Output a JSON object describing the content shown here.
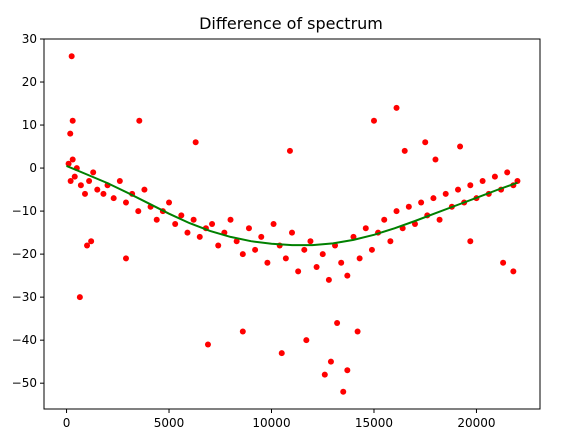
{
  "chart_data": {
    "type": "scatter",
    "title": "Difference of spectrum",
    "xlabel": "",
    "ylabel": "",
    "xlim": [
      -1100,
      23100
    ],
    "ylim": [
      -56,
      30
    ],
    "xticks": [
      0,
      5000,
      10000,
      15000,
      20000
    ],
    "yticks": [
      30,
      20,
      10,
      0,
      -10,
      -20,
      -30,
      -40,
      -50
    ],
    "grid": false,
    "legend": "none",
    "scatter_color": "#ff0000",
    "fit_color": "#008000",
    "series": [
      {
        "type": "scatter",
        "x": [
          100,
          200,
          300,
          400,
          500,
          700,
          900,
          1100,
          1300,
          1500,
          1800,
          2000,
          2300,
          2600,
          2900,
          3200,
          3500,
          3800,
          4100,
          4400,
          4700,
          5000,
          5300,
          5600,
          5900,
          6200,
          6500,
          6800,
          7100,
          7400,
          7700,
          8000,
          8300,
          8600,
          8900,
          9200,
          9500,
          9800,
          10100,
          10400,
          10700,
          11000,
          11300,
          11600,
          11900,
          12200,
          12500,
          12800,
          13100,
          13400,
          13700,
          14000,
          14300,
          14600,
          14900,
          15200,
          15500,
          15800,
          16100,
          16400,
          16700,
          17000,
          17300,
          17600,
          17900,
          18200,
          18500,
          18800,
          19100,
          19400,
          19700,
          20000,
          20300,
          20600,
          20900,
          21200,
          21500,
          21800,
          22000,
          250,
          300,
          180,
          650,
          1200,
          3550,
          1000,
          2900,
          6300,
          6900,
          8600,
          10500,
          10900,
          11700,
          12600,
          12900,
          13200,
          13500,
          13700,
          14200,
          15000,
          16100,
          16500,
          17500,
          18000,
          19200,
          19700,
          21300,
          21800
        ],
        "y": [
          1,
          -3,
          2,
          -2,
          0,
          -4,
          -6,
          -3,
          -1,
          -5,
          -6,
          -4,
          -7,
          -3,
          -8,
          -6,
          -10,
          -5,
          -9,
          -12,
          -10,
          -8,
          -13,
          -11,
          -15,
          -12,
          -16,
          -14,
          -13,
          -18,
          -15,
          -12,
          -17,
          -20,
          -14,
          -19,
          -16,
          -22,
          -13,
          -18,
          -21,
          -15,
          -24,
          -19,
          -17,
          -23,
          -20,
          -26,
          -18,
          -22,
          -25,
          -16,
          -21,
          -14,
          -19,
          -15,
          -12,
          -17,
          -10,
          -14,
          -9,
          -13,
          -8,
          -11,
          -7,
          -12,
          -6,
          -9,
          -5,
          -8,
          -4,
          -7,
          -3,
          -6,
          -2,
          -5,
          -1,
          -4,
          -3,
          26,
          11,
          8,
          -30,
          -17,
          11,
          -18,
          -21,
          6,
          -41,
          -38,
          -43,
          4,
          -40,
          -48,
          -45,
          -36,
          -52,
          -47,
          -38,
          11,
          14,
          4,
          6,
          2,
          5,
          -17,
          -22,
          -24
        ]
      },
      {
        "type": "line",
        "name": "",
        "x": [
          0,
          1000,
          2000,
          3000,
          4000,
          5000,
          6000,
          7000,
          8000,
          9000,
          10000,
          11000,
          12000,
          13000,
          14000,
          15000,
          16000,
          17000,
          18000,
          19000,
          20000,
          21000,
          22000
        ],
        "y": [
          0.5,
          -1.5,
          -3.5,
          -5.8,
          -8.2,
          -10.6,
          -12.8,
          -14.6,
          -16.0,
          -17.0,
          -17.6,
          -17.9,
          -17.9,
          -17.5,
          -16.7,
          -15.5,
          -14.0,
          -12.3,
          -10.5,
          -8.7,
          -6.9,
          -5.1,
          -3.4
        ]
      }
    ]
  }
}
